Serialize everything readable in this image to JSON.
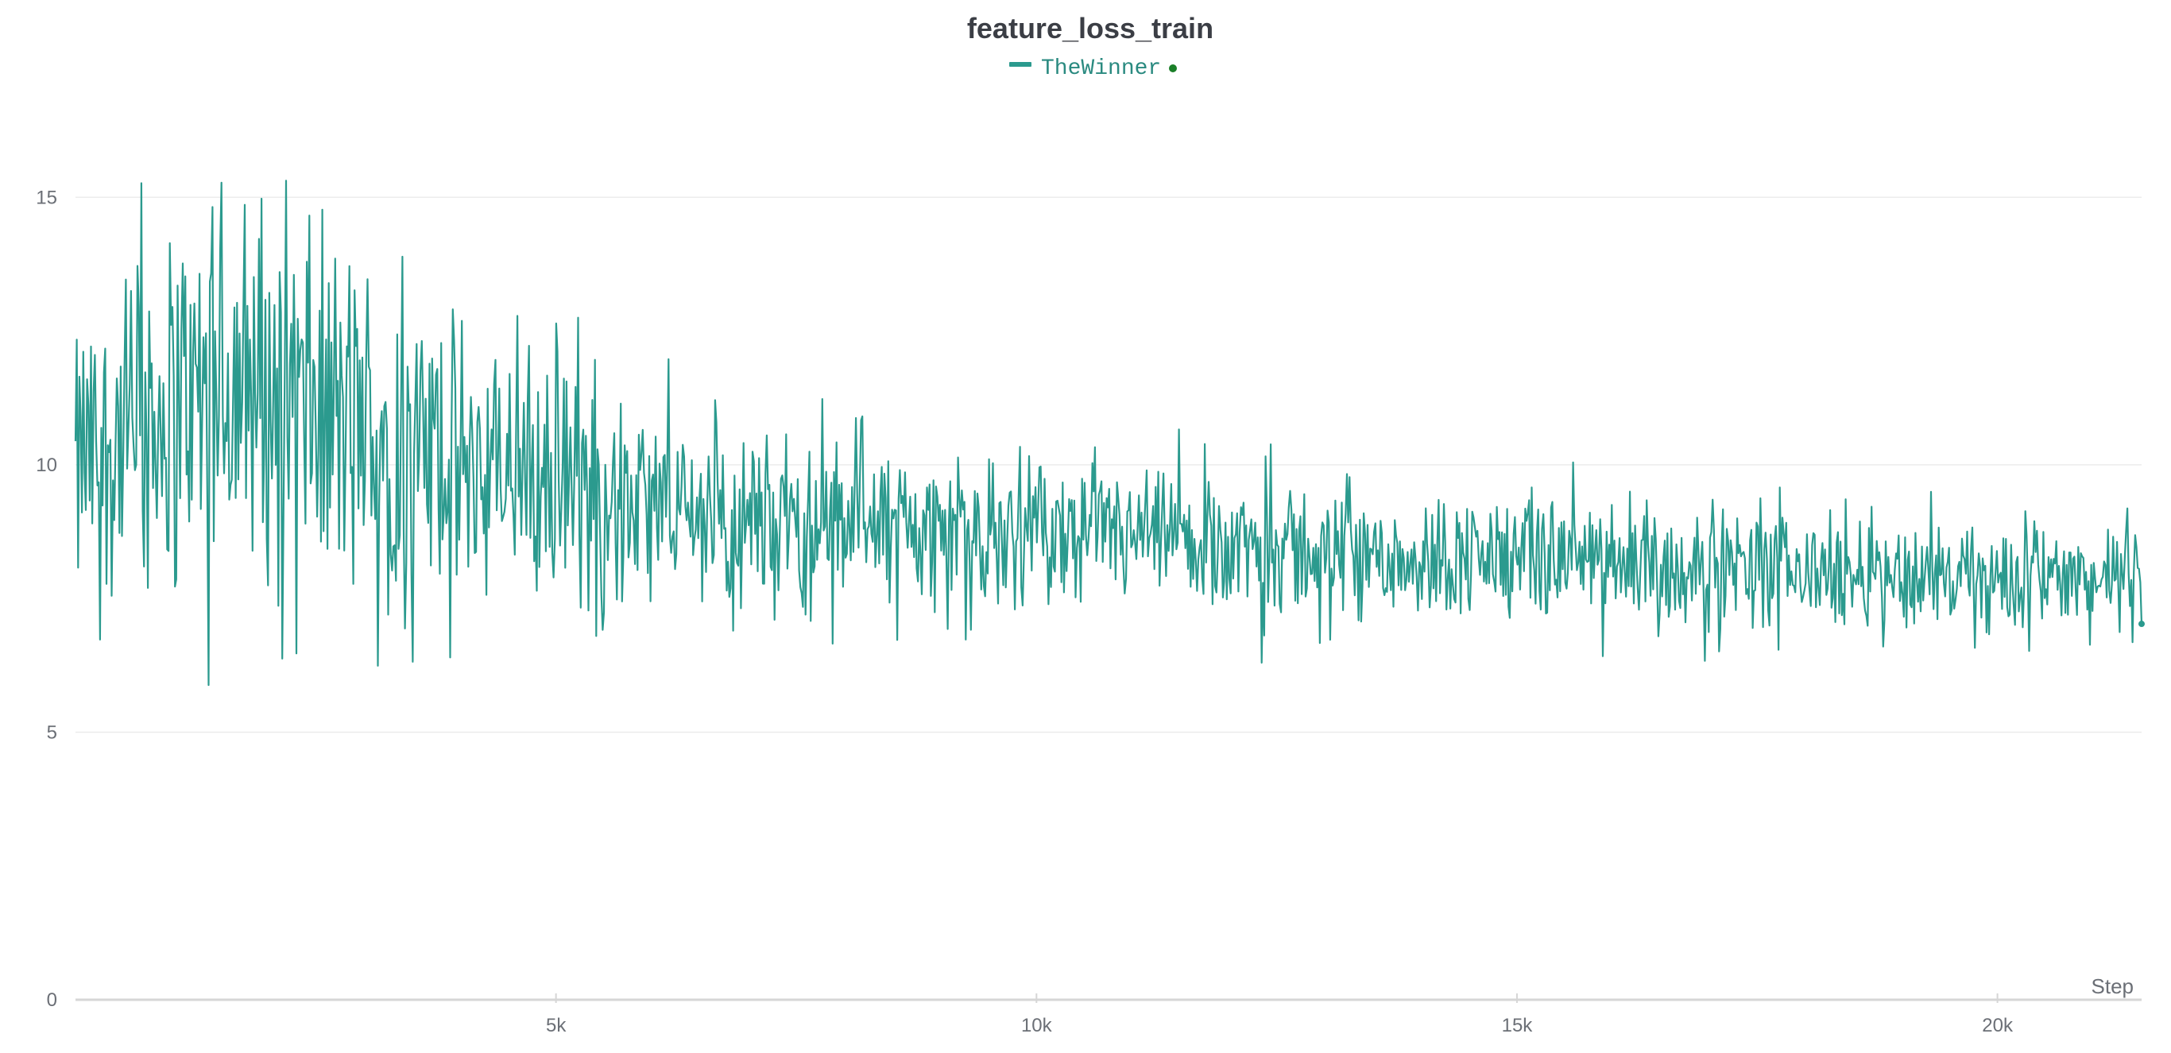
{
  "chart_data": {
    "type": "line",
    "title": "feature_loss_train",
    "xlabel": "Step",
    "ylabel": "",
    "xlim": [
      0,
      21500
    ],
    "ylim": [
      0,
      17.5
    ],
    "x_ticks": [
      5000,
      10000,
      15000,
      20000
    ],
    "x_tick_labels": [
      "5k",
      "10k",
      "15k",
      "20k"
    ],
    "y_ticks": [
      0,
      5,
      10,
      15
    ],
    "y_tick_labels": [
      "0",
      "5",
      "10",
      "15"
    ],
    "grid": true,
    "legend_position": "top-center",
    "series": [
      {
        "name": "TheWinner",
        "color": "#2b9a8e",
        "x": [
          0,
          500,
          1000,
          1500,
          2000,
          2500,
          3000,
          3500,
          4000,
          4500,
          5000,
          5500,
          6000,
          6500,
          7000,
          7500,
          8000,
          8500,
          9000,
          9500,
          10000,
          10500,
          11000,
          11500,
          12000,
          12500,
          13000,
          13500,
          14000,
          14500,
          15000,
          15500,
          16000,
          16500,
          17000,
          17500,
          18000,
          18500,
          19000,
          19500,
          20000,
          20500,
          21000,
          21500
        ],
        "y": [
          9.9,
          10.5,
          11.0,
          11.5,
          11.4,
          11.0,
          10.6,
          10.3,
          10.0,
          9.8,
          9.6,
          9.4,
          9.2,
          9.1,
          9.0,
          8.9,
          8.9,
          8.8,
          8.8,
          8.7,
          8.7,
          8.6,
          8.6,
          8.5,
          8.5,
          8.4,
          8.4,
          8.3,
          8.3,
          8.3,
          8.2,
          8.2,
          8.1,
          8.1,
          8.1,
          8.0,
          8.0,
          8.0,
          7.9,
          7.9,
          7.9,
          7.9,
          7.8,
          7.8
        ],
        "spread": [
          2.0,
          2.6,
          2.8,
          3.0,
          2.9,
          2.8,
          2.6,
          2.3,
          2.2,
          2.1,
          1.9,
          1.6,
          1.4,
          1.3,
          1.3,
          1.3,
          1.2,
          1.2,
          1.1,
          1.1,
          1.1,
          1.1,
          1.0,
          1.0,
          1.0,
          1.0,
          1.0,
          1.0,
          0.9,
          0.9,
          0.9,
          0.9,
          0.9,
          0.9,
          0.9,
          0.9,
          0.8,
          0.8,
          0.8,
          0.8,
          0.8,
          0.8,
          0.8,
          0.8
        ],
        "min": [
          4.9,
          5.8,
          6.0,
          6.2,
          6.4,
          6.8,
          6.8,
          6.9,
          6.6,
          6.5,
          6.4,
          6.3,
          6.3,
          6.3,
          6.3,
          6.4,
          6.0,
          6.3,
          6.4,
          6.5,
          6.6,
          6.5,
          6.6
        ],
        "max": [
          15.4,
          16.1,
          16.4,
          15.4,
          13.0,
          12.6,
          11.9,
          11.9,
          11.0,
          10.8,
          11.3,
          10.6,
          10.6,
          10.2,
          10.0,
          10.4,
          10.4,
          10.1,
          10.0,
          9.9
        ],
        "point_count": 1600
      }
    ]
  }
}
